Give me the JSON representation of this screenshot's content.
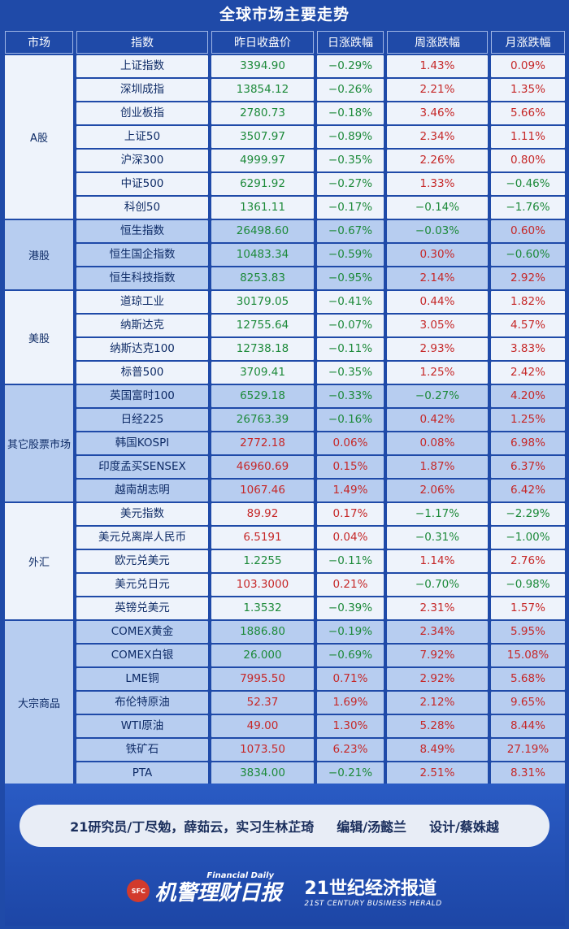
{
  "title": "全球市场主要走势",
  "headers": [
    "市场",
    "指数",
    "昨日收盘价",
    "日涨跌幅",
    "周涨跌幅",
    "月涨跌幅"
  ],
  "colors": {
    "up": "#c62828",
    "down": "#1d8a3a",
    "band_dark": "#b7cdf0",
    "band_light": "#eef3fb"
  },
  "groups": [
    {
      "market": "A股",
      "band": "light",
      "rows": [
        [
          "上证指数",
          "3394.90",
          "−0.29%",
          "1.43%",
          "0.09%"
        ],
        [
          "深圳成指",
          "13854.12",
          "−0.26%",
          "2.21%",
          "1.35%"
        ],
        [
          "创业板指",
          "2780.73",
          "−0.18%",
          "3.46%",
          "5.66%"
        ],
        [
          "上证50",
          "3507.97",
          "−0.89%",
          "2.34%",
          "1.11%"
        ],
        [
          "沪深300",
          "4999.97",
          "−0.35%",
          "2.26%",
          "0.80%"
        ],
        [
          "中证500",
          "6291.92",
          "−0.27%",
          "1.33%",
          "−0.46%"
        ],
        [
          "科创50",
          "1361.11",
          "−0.17%",
          "−0.14%",
          "−1.76%"
        ]
      ]
    },
    {
      "market": "港股",
      "band": "dark",
      "rows": [
        [
          "恒生指数",
          "26498.60",
          "−0.67%",
          "−0.03%",
          "0.60%"
        ],
        [
          "恒生国企指数",
          "10483.34",
          "−0.59%",
          "0.30%",
          "−0.60%"
        ],
        [
          "恒生科技指数",
          "8253.83",
          "−0.95%",
          "2.14%",
          "2.92%"
        ]
      ]
    },
    {
      "market": "美股",
      "band": "light",
      "rows": [
        [
          "道琼工业",
          "30179.05",
          "−0.41%",
          "0.44%",
          "1.82%"
        ],
        [
          "纳斯达克",
          "12755.64",
          "−0.07%",
          "3.05%",
          "4.57%"
        ],
        [
          "纳斯达克100",
          "12738.18",
          "−0.11%",
          "2.93%",
          "3.83%"
        ],
        [
          "标普500",
          "3709.41",
          "−0.35%",
          "1.25%",
          "2.42%"
        ]
      ]
    },
    {
      "market": "其它股票市场",
      "band": "dark",
      "rows": [
        [
          "英国富时100",
          "6529.18",
          "−0.33%",
          "−0.27%",
          "4.20%"
        ],
        [
          "日经225",
          "26763.39",
          "−0.16%",
          "0.42%",
          "1.25%"
        ],
        [
          "韩国KOSPI",
          "2772.18",
          "0.06%",
          "0.08%",
          "6.98%"
        ],
        [
          "印度孟买SENSEX",
          "46960.69",
          "0.15%",
          "1.87%",
          "6.37%"
        ],
        [
          "越南胡志明",
          "1067.46",
          "1.49%",
          "2.06%",
          "6.42%"
        ]
      ]
    },
    {
      "market": "外汇",
      "band": "light",
      "rows": [
        [
          "美元指数",
          "89.92",
          "0.17%",
          "−1.17%",
          "−2.29%"
        ],
        [
          "美元兑离岸人民币",
          "6.5191",
          "0.04%",
          "−0.31%",
          "−1.00%"
        ],
        [
          "欧元兑美元",
          "1.2255",
          "−0.11%",
          "1.14%",
          "2.76%"
        ],
        [
          "美元兑日元",
          "103.3000",
          "0.21%",
          "−0.70%",
          "−0.98%"
        ],
        [
          "英镑兑美元",
          "1.3532",
          "−0.39%",
          "2.31%",
          "1.57%"
        ]
      ]
    },
    {
      "market": "大宗商品",
      "band": "dark",
      "rows": [
        [
          "COMEX黄金",
          "1886.80",
          "−0.19%",
          "2.34%",
          "5.95%"
        ],
        [
          "COMEX白银",
          "26.000",
          "−0.69%",
          "7.92%",
          "15.08%"
        ],
        [
          "LME铜",
          "7995.50",
          "0.71%",
          "2.92%",
          "5.68%"
        ],
        [
          "布伦特原油",
          "52.37",
          "1.69%",
          "2.12%",
          "9.65%"
        ],
        [
          "WTI原油",
          "49.00",
          "1.30%",
          "5.28%",
          "8.44%"
        ],
        [
          "铁矿石",
          "1073.50",
          "6.23%",
          "8.49%",
          "27.19%"
        ],
        [
          "PTA",
          "3834.00",
          "−0.21%",
          "2.51%",
          "8.31%"
        ]
      ]
    }
  ],
  "credits": {
    "researchers": "21研究员/丁尽勉，薛茹云，实习生林芷琦",
    "editor": "编辑/汤懿兰",
    "designer": "设计/蔡姝越"
  },
  "logos": {
    "left_badge": "SFC",
    "left_name": "机警理财日报",
    "left_sub": "Financial Daily",
    "right_name": "21世纪经济报道",
    "right_sub": "21ST CENTURY BUSINESS HERALD"
  }
}
